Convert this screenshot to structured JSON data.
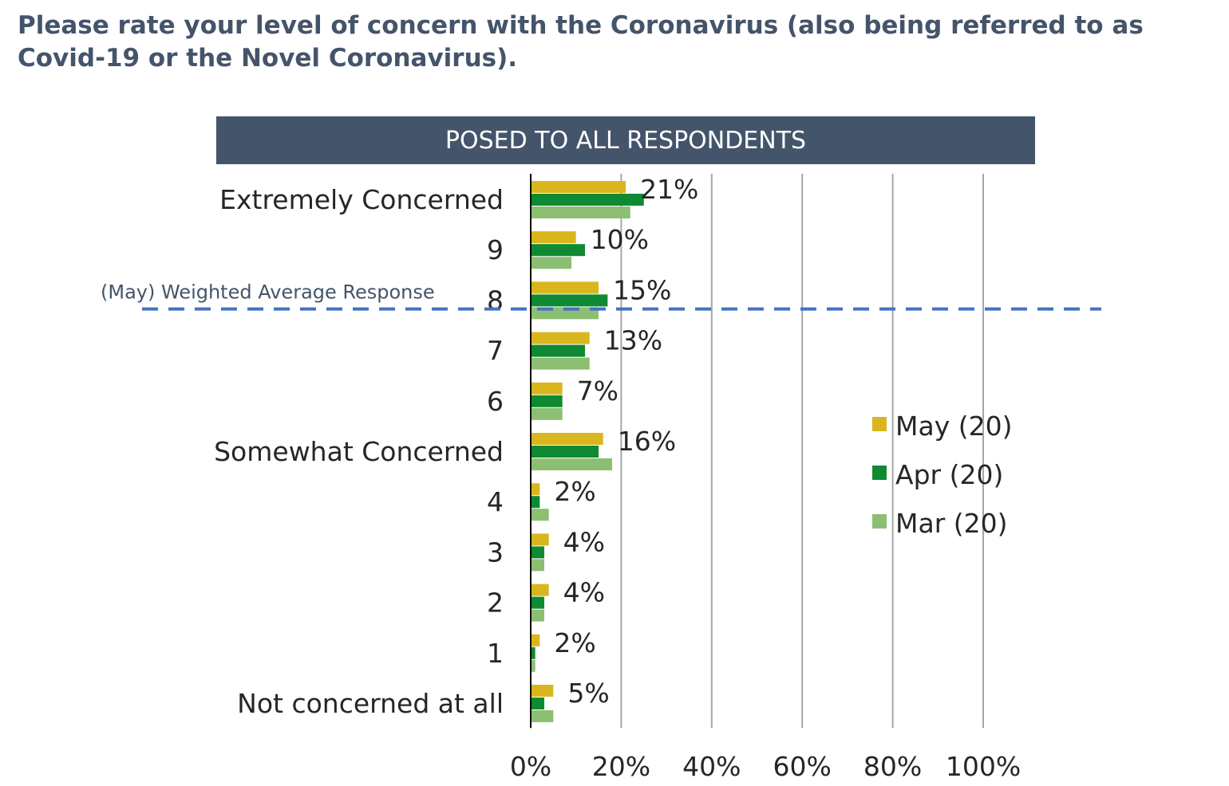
{
  "question": "Please rate your level of concern with the Coronavirus (also being referred to as Covid-19 or the Novel Coronavirus).",
  "banner": "POSED TO ALL RESPONDENTS",
  "reference_line_label": "(May) Weighted Average Response",
  "colors": {
    "may": "#d9b61e",
    "apr": "#0f8a32",
    "mar": "#8cbf72",
    "reference_line": "#4472c4",
    "gridline": "#a6a6a6",
    "banner": "#44546a"
  },
  "chart_data": {
    "type": "bar",
    "orientation": "horizontal",
    "categories": [
      "Extremely Concerned",
      "9",
      "8",
      "7",
      "6",
      "Somewhat Concerned",
      "4",
      "3",
      "2",
      "1",
      "Not concerned at all"
    ],
    "series": [
      {
        "name": "May (20)",
        "values": [
          21,
          10,
          15,
          13,
          7,
          16,
          2,
          4,
          4,
          2,
          5
        ]
      },
      {
        "name": "Apr (20)",
        "values": [
          25,
          12,
          17,
          12,
          7,
          15,
          2,
          3,
          3,
          1,
          3
        ]
      },
      {
        "name": "Mar (20)",
        "values": [
          22,
          9,
          15,
          13,
          7,
          18,
          4,
          3,
          3,
          1,
          5
        ]
      }
    ],
    "data_labels": [
      "21%",
      "10%",
      "15%",
      "13%",
      "7%",
      "16%",
      "2%",
      "4%",
      "4%",
      "2%",
      "5%"
    ],
    "x_ticks": [
      "0%",
      "20%",
      "40%",
      "60%",
      "80%",
      "100%"
    ],
    "xlim": [
      0,
      100
    ],
    "grid": true,
    "legend_position": "right",
    "reference_line_value": 7.8
  }
}
